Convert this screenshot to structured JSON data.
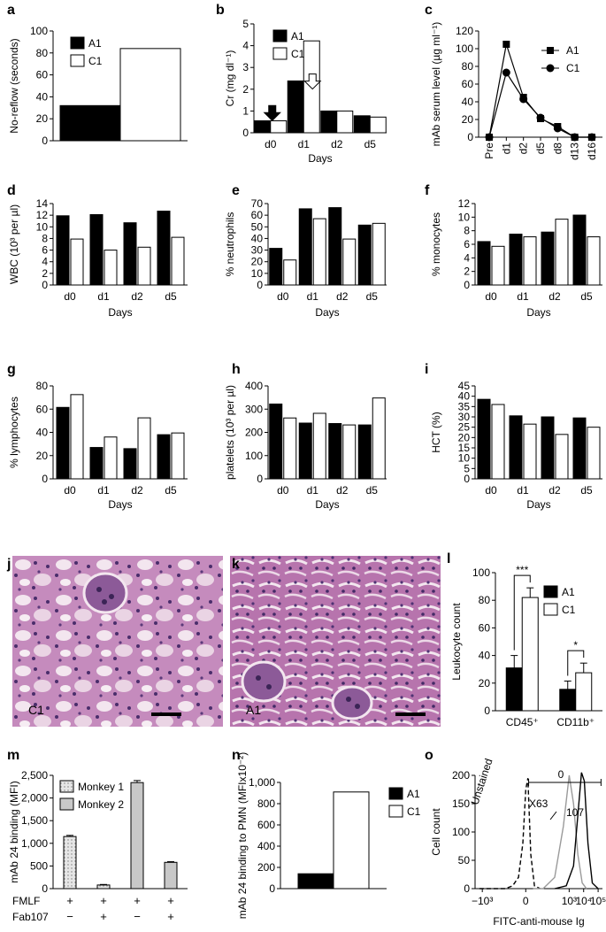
{
  "colors": {
    "a1": "#000000",
    "c1": "#ffffff",
    "monkey1": "#e6e6e6",
    "monkey2": "#c8c8c8",
    "tissue": "#b06fa8",
    "scale_bar": "#000000",
    "axis": "#000000"
  },
  "chart_data": [
    {
      "id": "a",
      "letter": "a",
      "type": "bar",
      "ylabel": "No-reflow (seconds)",
      "ylim": [
        0,
        100
      ],
      "yticks": [
        0,
        20,
        40,
        60,
        80,
        100
      ],
      "categories": [
        ""
      ],
      "series": [
        {
          "name": "A1",
          "values": [
            32
          ]
        },
        {
          "name": "C1",
          "values": [
            84
          ]
        }
      ],
      "legend": "top-left"
    },
    {
      "id": "b",
      "letter": "b",
      "type": "bar",
      "ylabel": "Cr (mg dl⁻¹)",
      "xlabel": "Days",
      "ylim": [
        0,
        5
      ],
      "yticks": [
        0,
        1,
        2,
        3,
        4,
        5
      ],
      "categories": [
        "d0",
        "d1",
        "d2",
        "d5"
      ],
      "series": [
        {
          "name": "A1",
          "values": [
            0.55,
            2.38,
            1.0,
            0.78
          ]
        },
        {
          "name": "C1",
          "values": [
            0.55,
            4.22,
            1.0,
            0.72
          ]
        }
      ],
      "legend": "top-left",
      "annotations": [
        {
          "kind": "arrow-down-filled",
          "category": 0,
          "y": 1.25
        },
        {
          "kind": "arrow-down-open",
          "category": 1,
          "y": 2.7
        }
      ]
    },
    {
      "id": "c",
      "letter": "c",
      "type": "line",
      "ylabel": "mAb serum level (µg ml⁻¹)",
      "ylim": [
        0,
        120
      ],
      "yticks": [
        0,
        20,
        40,
        60,
        80,
        100,
        120
      ],
      "categories": [
        "Pre",
        "d1",
        "d2",
        "d5",
        "d8",
        "d13",
        "d16"
      ],
      "series": [
        {
          "name": "A1",
          "marker": "square",
          "values": [
            0,
            105,
            45,
            21,
            12,
            0,
            0
          ]
        },
        {
          "name": "C1",
          "marker": "circle",
          "values": [
            0,
            73,
            43,
            22,
            10,
            0,
            0
          ]
        }
      ],
      "legend": "top-right"
    },
    {
      "id": "d",
      "letter": "d",
      "type": "bar",
      "ylabel": "WBC (10³ per µl)",
      "xlabel": "Days",
      "ylim": [
        0,
        14
      ],
      "yticks": [
        0,
        2,
        4,
        6,
        8,
        10,
        12,
        14
      ],
      "categories": [
        "d0",
        "d1",
        "d2",
        "d5"
      ],
      "series": [
        {
          "name": "A1",
          "values": [
            11.9,
            12.1,
            10.7,
            12.7
          ]
        },
        {
          "name": "C1",
          "values": [
            7.9,
            6.0,
            6.5,
            8.2
          ]
        }
      ]
    },
    {
      "id": "e",
      "letter": "e",
      "type": "bar",
      "ylabel": "% neutrophils",
      "xlabel": "Days",
      "ylim": [
        0,
        70
      ],
      "yticks": [
        0,
        10,
        20,
        30,
        40,
        50,
        60,
        70
      ],
      "categories": [
        "d0",
        "d1",
        "d2",
        "d5"
      ],
      "series": [
        {
          "name": "A1",
          "values": [
            31.5,
            65.5,
            66.5,
            51.5
          ]
        },
        {
          "name": "C1",
          "values": [
            21.5,
            57,
            39.5,
            53
          ]
        }
      ]
    },
    {
      "id": "f",
      "letter": "f",
      "type": "bar",
      "ylabel": "% monocytes",
      "xlabel": "Days",
      "ylim": [
        0,
        12
      ],
      "yticks": [
        0,
        2,
        4,
        6,
        8,
        10,
        12
      ],
      "categories": [
        "d0",
        "d1",
        "d2",
        "d5"
      ],
      "series": [
        {
          "name": "A1",
          "values": [
            6.4,
            7.5,
            7.8,
            10.3
          ]
        },
        {
          "name": "C1",
          "values": [
            5.7,
            7.1,
            9.7,
            7.1
          ]
        }
      ]
    },
    {
      "id": "g",
      "letter": "g",
      "type": "bar",
      "ylabel": "% lymphocytes",
      "xlabel": "Days",
      "ylim": [
        0,
        80
      ],
      "yticks": [
        0,
        20,
        40,
        60,
        80
      ],
      "categories": [
        "d0",
        "d1",
        "d2",
        "d5"
      ],
      "series": [
        {
          "name": "A1",
          "values": [
            61.5,
            27,
            26,
            38
          ]
        },
        {
          "name": "C1",
          "values": [
            72.5,
            36,
            52.5,
            39.5
          ]
        }
      ]
    },
    {
      "id": "h",
      "letter": "h",
      "type": "bar",
      "ylabel": "platelets (10³ per µl)",
      "xlabel": "Days",
      "ylim": [
        0,
        400
      ],
      "yticks": [
        0,
        100,
        200,
        300,
        400
      ],
      "categories": [
        "d0",
        "d1",
        "d2",
        "d5"
      ],
      "series": [
        {
          "name": "A1",
          "values": [
            322,
            240,
            238,
            232
          ]
        },
        {
          "name": "C1",
          "values": [
            262,
            282,
            232,
            348
          ]
        }
      ]
    },
    {
      "id": "i",
      "letter": "i",
      "type": "bar",
      "ylabel": "HCT (%)",
      "xlabel": "Days",
      "ylim": [
        0,
        45
      ],
      "yticks": [
        0,
        5,
        10,
        15,
        20,
        25,
        30,
        35,
        40,
        45
      ],
      "categories": [
        "d0",
        "d1",
        "d2",
        "d5"
      ],
      "series": [
        {
          "name": "A1",
          "values": [
            38.5,
            30.5,
            30,
            29.5
          ]
        },
        {
          "name": "C1",
          "values": [
            36,
            26.5,
            21.5,
            25
          ]
        }
      ]
    },
    {
      "id": "l",
      "letter": "l",
      "type": "bar",
      "ylabel": "Leukocyte count",
      "ylim": [
        0,
        100
      ],
      "yticks": [
        0,
        20,
        40,
        60,
        80,
        100
      ],
      "categories": [
        "CD45⁺",
        "CD11b⁺"
      ],
      "series": [
        {
          "name": "A1",
          "values": [
            31,
            15.5
          ],
          "errors": [
            9,
            6
          ]
        },
        {
          "name": "C1",
          "values": [
            82,
            27.5
          ],
          "errors": [
            7,
            7
          ]
        }
      ],
      "legend": "right",
      "significance": [
        {
          "category": 0,
          "label": "***"
        },
        {
          "category": 1,
          "label": "*"
        }
      ]
    },
    {
      "id": "m",
      "letter": "m",
      "type": "bar",
      "ylabel": "mAb 24 binding (MFI)",
      "ylim": [
        0,
        2500
      ],
      "yticks": [
        0,
        500,
        1000,
        1500,
        2000,
        2500
      ],
      "ytick_labels": [
        "0",
        "500",
        "1,000",
        "1,500",
        "2,000",
        "2,500"
      ],
      "bars": [
        {
          "value": 1150,
          "error": 25,
          "series": "Monkey 1"
        },
        {
          "value": 80,
          "error": 12,
          "series": "Monkey 1"
        },
        {
          "value": 2340,
          "error": 45,
          "series": "Monkey 2"
        },
        {
          "value": 580,
          "error": 15,
          "series": "Monkey 2"
        }
      ],
      "legend_entries": [
        "Monkey 1",
        "Monkey 2"
      ],
      "legend": "top-left",
      "row_labels": [
        "FMLF",
        "Fab107"
      ],
      "rows": [
        [
          "+",
          "+",
          "+",
          "+"
        ],
        [
          "−",
          "+",
          "−",
          "+"
        ]
      ]
    },
    {
      "id": "n",
      "letter": "n",
      "type": "bar",
      "ylabel": "mAb 24 binding to PMN (MFIx10⁻²)",
      "ylim": [
        0,
        1000
      ],
      "yticks": [
        0,
        200,
        400,
        600,
        800,
        1000
      ],
      "ytick_labels": [
        "0",
        "200",
        "400",
        "600",
        "800",
        "1,000"
      ],
      "categories": [
        ""
      ],
      "series": [
        {
          "name": "A1",
          "values": [
            140
          ]
        },
        {
          "name": "C1",
          "values": [
            910
          ]
        }
      ],
      "legend": "right"
    },
    {
      "id": "o",
      "letter": "o",
      "type": "line",
      "ylabel": "Cell count",
      "xlabel": "FITC-anti-mouse Ig",
      "ylim": [
        0,
        200
      ],
      "yticks": [
        0,
        50,
        100,
        150,
        200
      ],
      "xtick_labels": [
        "−10³",
        "0",
        "10³",
        "10⁴",
        "10⁵"
      ],
      "xticks": [
        -3,
        0,
        3,
        4,
        5
      ],
      "series": [
        {
          "name": "Unstained",
          "style": "dashed",
          "color": "#000000",
          "x": [
            -3.2,
            -1.4,
            -0.9,
            -0.5,
            -0.2,
            0.0,
            0.15,
            0.35,
            0.6,
            1.0
          ],
          "values": [
            0,
            0,
            5,
            20,
            80,
            175,
            195,
            60,
            5,
            0
          ]
        },
        {
          "name": "X63",
          "style": "solid",
          "color": "#9a9a9a",
          "x": [
            0.5,
            1.2,
            2.0,
            2.6,
            3.0,
            3.3,
            3.6,
            3.9,
            4.2
          ],
          "values": [
            0,
            0,
            20,
            110,
            200,
            150,
            60,
            10,
            0
          ]
        },
        {
          "name": "107",
          "style": "solid",
          "color": "#000000",
          "x": [
            2.0,
            2.8,
            3.3,
            3.6,
            3.85,
            4.05,
            4.3,
            4.6,
            5.0
          ],
          "values": [
            0,
            5,
            40,
            130,
            205,
            190,
            80,
            10,
            0
          ]
        }
      ],
      "gate_label": "0"
    }
  ],
  "micrographs": [
    {
      "id": "j",
      "letter": "j",
      "label": "C1"
    },
    {
      "id": "k",
      "letter": "k",
      "label": "A1"
    }
  ]
}
